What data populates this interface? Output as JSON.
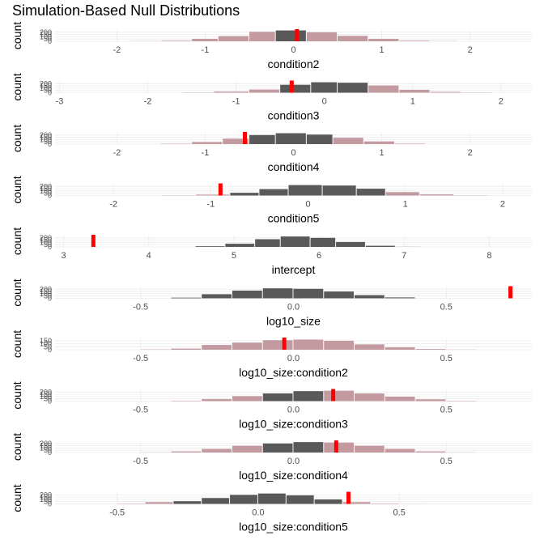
{
  "title": "Simulation-Based Null Distributions",
  "chart_data": {
    "type": "histogram",
    "ylabel": "count",
    "grid": true,
    "colors": {
      "inside": "#595959",
      "tail": "#c49aa1",
      "observed": "#ff0000",
      "grid": "#ebebeb"
    },
    "panels": [
      {
        "xlabel": "condition2",
        "xlim": [
          -2.7,
          2.7
        ],
        "xticks": [
          -2,
          -1,
          0,
          1,
          2
        ],
        "ymax": 250,
        "yticks": [
          0,
          50,
          100,
          150,
          200
        ],
        "observed": 0.04,
        "ci": [
          -0.05,
          0.05
        ],
        "breaks": [
          -1.85,
          -1.5,
          -1.15,
          -0.85,
          -0.5,
          -0.2,
          0.15,
          0.5,
          0.85,
          1.2,
          1.55,
          1.85
        ],
        "counts": [
          4,
          12,
          55,
          115,
          210,
          240,
          200,
          120,
          55,
          14,
          4
        ]
      },
      {
        "xlabel": "condition3",
        "xlim": [
          -3.05,
          2.35
        ],
        "xticks": [
          -3,
          -2,
          -1,
          0,
          1,
          2
        ],
        "ymax": 250,
        "yticks": [
          0,
          50,
          100,
          150,
          200
        ],
        "observed": -0.37,
        "ci": [
          -0.37,
          0.42
        ],
        "breaks": [
          -1.6,
          -1.25,
          -0.85,
          -0.5,
          -0.15,
          0.15,
          0.5,
          0.85,
          1.2,
          1.55,
          1.9
        ],
        "counts": [
          5,
          25,
          70,
          175,
          230,
          220,
          160,
          65,
          18,
          4
        ]
      },
      {
        "xlabel": "condition4",
        "xlim": [
          -2.7,
          2.7
        ],
        "xticks": [
          -2,
          -1,
          0,
          1,
          2
        ],
        "ymax": 250,
        "yticks": [
          0,
          50,
          100,
          150,
          200
        ],
        "observed": -0.55,
        "ci": [
          -0.55,
          0.45
        ],
        "breaks": [
          -1.5,
          -1.15,
          -0.8,
          -0.5,
          -0.2,
          0.15,
          0.45,
          0.8,
          1.15,
          1.5
        ],
        "counts": [
          8,
          45,
          120,
          200,
          240,
          210,
          140,
          60,
          10
        ]
      },
      {
        "xlabel": "condition5",
        "xlim": [
          -2.6,
          2.3
        ],
        "xticks": [
          -2,
          -1,
          0,
          1,
          2
        ],
        "ymax": 250,
        "yticks": [
          0,
          50,
          100,
          150,
          200
        ],
        "observed": -0.9,
        "ci": [
          -0.9,
          0.85
        ],
        "breaks": [
          -1.5,
          -1.15,
          -0.8,
          -0.5,
          -0.2,
          0.15,
          0.5,
          0.8,
          1.15,
          1.5,
          1.85
        ],
        "counts": [
          6,
          20,
          60,
          140,
          230,
          220,
          150,
          75,
          25,
          6
        ]
      },
      {
        "xlabel": "intercept",
        "xlim": [
          2.9,
          8.5
        ],
        "xticks": [
          3,
          4,
          5,
          6,
          7,
          8
        ],
        "ymax": 250,
        "yticks": [
          0,
          50,
          100,
          150,
          200
        ],
        "observed": 3.35,
        "ci": [
          3.35,
          6.9
        ],
        "breaks": [
          4.55,
          4.9,
          5.25,
          5.55,
          5.9,
          6.2,
          6.55,
          6.9,
          7.2
        ],
        "counts": [
          15,
          70,
          170,
          230,
          200,
          110,
          25,
          5
        ]
      },
      {
        "xlabel": "log10_size",
        "xlim": [
          -0.78,
          0.78
        ],
        "xticks": [
          -0.5,
          0.0,
          0.5
        ],
        "ymax": 250,
        "yticks": [
          0,
          50,
          100,
          150,
          200
        ],
        "observed": 0.71,
        "ci": [
          -0.4,
          0.71
        ],
        "breaks": [
          -0.4,
          -0.3,
          -0.2,
          -0.1,
          0.0,
          0.1,
          0.2,
          0.3,
          0.4
        ],
        "counts": [
          15,
          90,
          170,
          220,
          210,
          150,
          70,
          20
        ]
      },
      {
        "xlabel": "log10_size:condition2",
        "xlim": [
          -0.78,
          0.78
        ],
        "xticks": [
          -0.5,
          0.0,
          0.5
        ],
        "ymax": 190,
        "yticks": [
          0,
          50,
          100,
          150
        ],
        "observed": -0.03,
        "ci": [
          -0.03,
          0.02
        ],
        "breaks": [
          -0.5,
          -0.4,
          -0.3,
          -0.2,
          -0.1,
          0.0,
          0.1,
          0.2,
          0.3,
          0.4,
          0.5,
          0.6
        ],
        "counts": [
          5,
          20,
          80,
          120,
          160,
          170,
          150,
          90,
          40,
          12,
          3
        ]
      },
      {
        "xlabel": "log10_size:condition3",
        "xlim": [
          -0.78,
          0.78
        ],
        "xticks": [
          -0.5,
          0.0,
          0.5
        ],
        "ymax": 250,
        "yticks": [
          0,
          50,
          100,
          150,
          200
        ],
        "observed": 0.13,
        "ci": [
          -0.15,
          0.13
        ],
        "breaks": [
          -0.4,
          -0.3,
          -0.2,
          -0.1,
          0.0,
          0.1,
          0.2,
          0.3,
          0.4,
          0.5,
          0.6
        ],
        "counts": [
          10,
          45,
          110,
          170,
          220,
          230,
          170,
          100,
          40,
          8
        ]
      },
      {
        "xlabel": "log10_size:condition4",
        "xlim": [
          -0.78,
          0.78
        ],
        "xticks": [
          -0.5,
          0.0,
          0.5
        ],
        "ymax": 250,
        "yticks": [
          0,
          50,
          100,
          150,
          200
        ],
        "observed": 0.14,
        "ci": [
          -0.15,
          0.14
        ],
        "breaks": [
          -0.5,
          -0.4,
          -0.3,
          -0.2,
          -0.1,
          0.0,
          0.1,
          0.2,
          0.3,
          0.4,
          0.5,
          0.6
        ],
        "counts": [
          5,
          25,
          80,
          150,
          200,
          230,
          220,
          150,
          80,
          25,
          5
        ]
      },
      {
        "xlabel": "log10_size:condition5",
        "xlim": [
          -0.72,
          0.97
        ],
        "xticks": [
          -0.5,
          0.0,
          0.5
        ],
        "ymax": 250,
        "yticks": [
          0,
          50,
          100,
          150,
          200
        ],
        "observed": 0.32,
        "ci": [
          -0.32,
          0.25
        ],
        "breaks": [
          -0.5,
          -0.4,
          -0.3,
          -0.2,
          -0.1,
          0.0,
          0.1,
          0.2,
          0.3,
          0.4,
          0.5,
          0.6
        ],
        "counts": [
          8,
          40,
          60,
          130,
          200,
          230,
          190,
          100,
          40,
          10,
          3
        ]
      }
    ]
  }
}
